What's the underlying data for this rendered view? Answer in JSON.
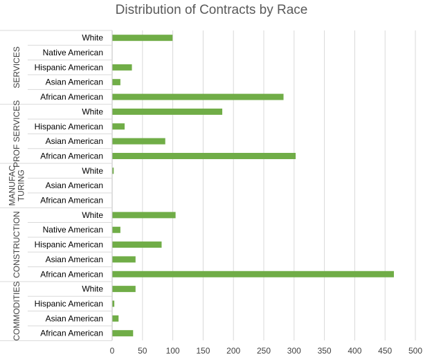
{
  "chart_data": {
    "type": "bar",
    "orientation": "horizontal",
    "title": "Distribution of Contracts by Race",
    "xlim": [
      0,
      500
    ],
    "x_ticks": [
      "0",
      "50",
      "100",
      "150",
      "200",
      "250",
      "300",
      "350",
      "400",
      "450",
      "500"
    ],
    "grid": "vertical",
    "bar_color": "#70AD47",
    "groups": [
      {
        "name": "SERVICES",
        "name_lines": [
          "SERVICES"
        ],
        "categories": [
          "White",
          "Native American",
          "Hispanic American",
          "Asian American",
          "African American"
        ],
        "values": [
          99,
          0,
          32,
          13,
          282
        ]
      },
      {
        "name": "PROF SERVICES",
        "name_lines": [
          "PROF SERVICES"
        ],
        "categories": [
          "White",
          "Hispanic American",
          "Asian American",
          "African American"
        ],
        "values": [
          181,
          20,
          87,
          302
        ]
      },
      {
        "name": "MANUFACTURING",
        "name_lines": [
          "MANUFAC",
          "TURING"
        ],
        "categories": [
          "White",
          "Asian American",
          "African American"
        ],
        "values": [
          2,
          0,
          0
        ]
      },
      {
        "name": "CONSTRUCTION",
        "name_lines": [
          "CONSTRUCTION"
        ],
        "categories": [
          "White",
          "Native American",
          "Hispanic American",
          "Asian American",
          "African American"
        ],
        "values": [
          104,
          13,
          81,
          38,
          464
        ]
      },
      {
        "name": "COMMODITIES",
        "name_lines": [
          "COMMODITIES"
        ],
        "categories": [
          "White",
          "Hispanic American",
          "Asian American",
          "African American"
        ],
        "values": [
          38,
          3,
          10,
          34
        ]
      }
    ]
  }
}
